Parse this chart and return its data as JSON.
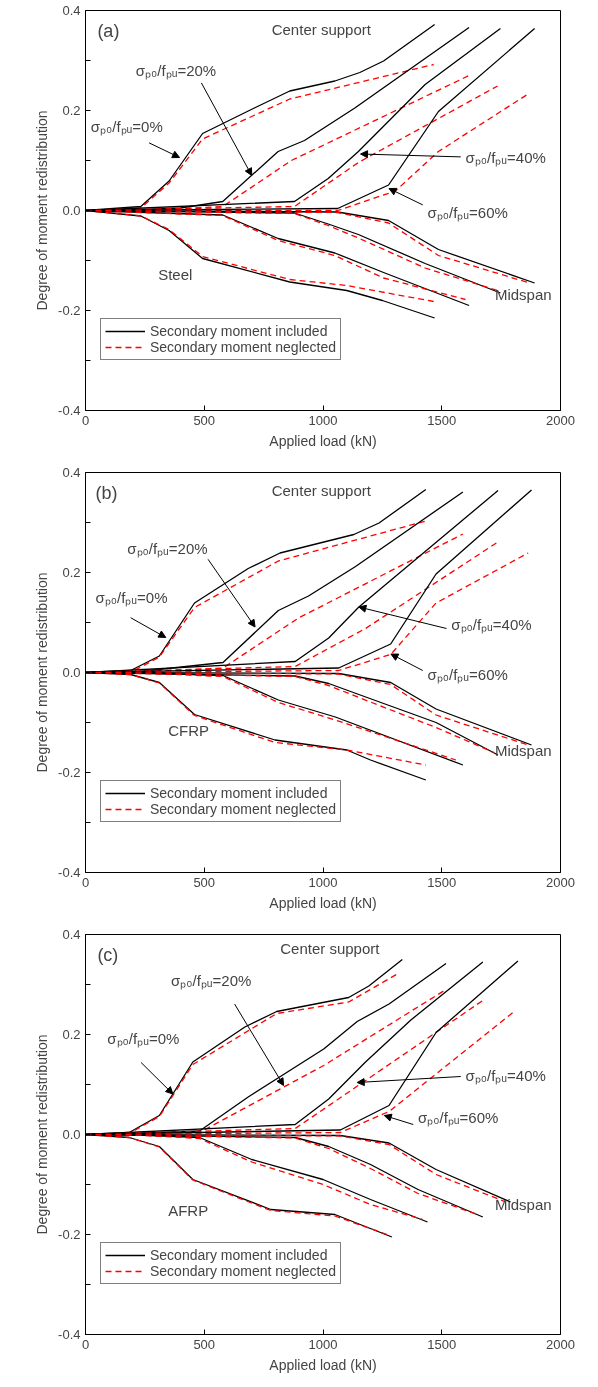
{
  "chart_data": [
    {
      "type": "line",
      "title": "(a)",
      "xlabel": "Applied load (kN)",
      "ylabel": "Degree of moment redistribution",
      "xlim": [
        0,
        2000
      ],
      "ylim": [
        -0.4,
        0.4
      ],
      "xticks": [
        0,
        500,
        1000,
        1500,
        2000
      ],
      "yticks": [
        {
          "value": -0.4,
          "label": "-0.4"
        },
        {
          "value": -0.3,
          "label": null
        },
        {
          "value": -0.2,
          "label": "-0.2"
        },
        {
          "value": -0.1,
          "label": null
        },
        {
          "value": 0,
          "label": "0.0"
        },
        {
          "value": 0.1,
          "label": null
        },
        {
          "value": 0.2,
          "label": "0.2"
        },
        {
          "value": 0.3,
          "label": null
        },
        {
          "value": 0.4,
          "label": "0.4"
        }
      ],
      "grid": false,
      "legend": "bottom left",
      "annotations": [
        {
          "text": "σₚ₀/fₚᵤ=0%",
          "x": 396,
          "y": 0.106
        },
        {
          "text": "σₚ₀/fₚᵤ=20%",
          "x": 700,
          "y": 0.07
        },
        {
          "text": "σₚ₀/fₚᵤ=40%",
          "x": 1158,
          "y": 0.113
        },
        {
          "text": "σₚ₀/fₚᵤ=60%",
          "x": 1278,
          "y": 0.044
        },
        "Center support",
        "Midspan",
        "Steel"
      ],
      "series": [
        {
          "name": "Secondary moment included",
          "color": "#000000",
          "line_style": "solid",
          "x": [
            0,
            233,
            352,
            493,
            711,
            860,
            1050,
            1155,
            1255,
            1470
          ],
          "values": [
            0,
            0.008,
            0.059,
            0.154,
            0.205,
            0.239,
            0.259,
            0.276,
            0.299,
            0.372
          ]
        },
        {
          "name": "Secondary moment neglected",
          "color": "#ff0000",
          "line_style": "dashed",
          "x": [
            0,
            233,
            352,
            493,
            860,
            1466
          ],
          "values": [
            0,
            0.005,
            0.055,
            0.143,
            0.223,
            0.292
          ]
        },
        {
          "color": "#000000",
          "line_style": "solid",
          "x": [
            0,
            233,
            352,
            493,
            860,
            1100,
            1250,
            1470
          ],
          "values": [
            0,
            -0.011,
            -0.04,
            -0.096,
            -0.143,
            -0.16,
            -0.18,
            -0.215
          ]
        },
        {
          "color": "#ff0000",
          "line_style": "dashed",
          "x": [
            0,
            233,
            352,
            493,
            860,
            1100,
            1466
          ],
          "values": [
            0,
            -0.011,
            -0.038,
            -0.092,
            -0.138,
            -0.15,
            -0.182
          ]
        },
        {
          "color": "#000000",
          "line_style": "solid",
          "x": [
            0,
            233,
            400,
            578,
            811,
            922,
            1134,
            1615
          ],
          "values": [
            0,
            0.002,
            0.005,
            0.018,
            0.118,
            0.14,
            0.205,
            0.366
          ]
        },
        {
          "color": "#ff0000",
          "line_style": "dashed",
          "x": [
            0,
            233,
            578,
            867,
            1615
          ],
          "values": [
            0,
            0,
            0.008,
            0.1,
            0.27
          ]
        },
        {
          "color": "#000000",
          "line_style": "solid",
          "x": [
            0,
            578,
            811,
            1050,
            1255,
            1615
          ],
          "values": [
            0,
            -0.009,
            -0.056,
            -0.085,
            -0.124,
            -0.19
          ]
        },
        {
          "color": "#ff0000",
          "line_style": "dashed",
          "x": [
            0,
            578,
            811,
            1050,
            1255,
            1600
          ],
          "values": [
            0,
            -0.01,
            -0.06,
            -0.09,
            -0.135,
            -0.178
          ]
        },
        {
          "color": "#000000",
          "line_style": "solid",
          "x": [
            0,
            880,
            1022,
            1149,
            1430,
            1747
          ],
          "values": [
            0,
            0.018,
            0.064,
            0.118,
            0.252,
            0.364
          ]
        },
        {
          "color": "#ff0000",
          "line_style": "dashed",
          "x": [
            0,
            880,
            1149,
            1735
          ],
          "values": [
            0,
            0.008,
            0.096,
            0.249
          ]
        },
        {
          "color": "#000000",
          "line_style": "solid",
          "x": [
            0,
            880,
            1022,
            1149,
            1430,
            1747
          ],
          "values": [
            0,
            -0.005,
            -0.027,
            -0.048,
            -0.106,
            -0.165
          ]
        },
        {
          "color": "#ff0000",
          "line_style": "dashed",
          "x": [
            0,
            880,
            1022,
            1149,
            1430,
            1735
          ],
          "values": [
            0,
            -0.006,
            -0.03,
            -0.055,
            -0.115,
            -0.16
          ]
        },
        {
          "color": "#000000",
          "line_style": "solid",
          "x": [
            0,
            1062,
            1276,
            1486,
            1891
          ],
          "values": [
            0,
            0.004,
            0.051,
            0.198,
            0.364
          ]
        },
        {
          "color": "#ff0000",
          "line_style": "dashed",
          "x": [
            0,
            1062,
            1305,
            1486,
            1870
          ],
          "values": [
            0,
            0,
            0.039,
            0.118,
            0.235
          ]
        },
        {
          "color": "#000000",
          "line_style": "solid",
          "x": [
            0,
            1062,
            1276,
            1486,
            1891
          ],
          "values": [
            0,
            -0.003,
            -0.02,
            -0.078,
            -0.145
          ]
        },
        {
          "color": "#ff0000",
          "line_style": "dashed",
          "x": [
            0,
            1062,
            1276,
            1486,
            1870
          ],
          "values": [
            0,
            -0.004,
            -0.025,
            -0.09,
            -0.145
          ]
        }
      ]
    },
    {
      "type": "line",
      "title": "(b)",
      "xlabel": "Applied load (kN)",
      "ylabel": "Degree of moment redistribution",
      "xlim": [
        0,
        2000
      ],
      "ylim": [
        -0.4,
        0.4
      ],
      "xticks": [
        0,
        500,
        1000,
        1500,
        2000
      ],
      "yticks": [
        {
          "value": -0.4,
          "label": "-0.4"
        },
        {
          "value": -0.3,
          "label": null
        },
        {
          "value": -0.2,
          "label": "-0.2"
        },
        {
          "value": -0.1,
          "label": null
        },
        {
          "value": 0,
          "label": "0.0"
        },
        {
          "value": 0.1,
          "label": null
        },
        {
          "value": 0.2,
          "label": "0.2"
        },
        {
          "value": 0.3,
          "label": null
        },
        {
          "value": 0.4,
          "label": "0.4"
        }
      ],
      "grid": false,
      "legend": "bottom left",
      "annotations": [
        {
          "text": "σₚ₀/fₚᵤ=0%",
          "x": 338,
          "y": 0.07
        },
        {
          "text": "σₚ₀/fₚᵤ=20%",
          "x": 714,
          "y": 0.091
        },
        {
          "text": "σₚ₀/fₚᵤ=40%",
          "x": 1151,
          "y": 0.131
        },
        {
          "text": "σₚ₀/fₚᵤ=60%",
          "x": 1286,
          "y": 0.037
        },
        "Center support",
        "Midspan",
        "CFRP"
      ],
      "series": [
        {
          "name": "Secondary moment included",
          "color": "#000000",
          "line_style": "solid",
          "x": [
            0,
            190,
            311,
            459,
            685,
            819,
            1130,
            1236,
            1433
          ],
          "values": [
            0,
            0.004,
            0.033,
            0.139,
            0.208,
            0.239,
            0.276,
            0.299,
            0.366
          ]
        },
        {
          "name": "Secondary moment neglected",
          "color": "#ff0000",
          "line_style": "dashed",
          "x": [
            0,
            190,
            311,
            459,
            812,
            1433
          ],
          "values": [
            0,
            0,
            0.031,
            0.13,
            0.223,
            0.303
          ]
        },
        {
          "color": "#000000",
          "line_style": "solid",
          "x": [
            0,
            190,
            311,
            459,
            798,
            1100,
            1200,
            1433
          ],
          "values": [
            0,
            -0.004,
            -0.02,
            -0.084,
            -0.135,
            -0.155,
            -0.175,
            -0.215
          ]
        },
        {
          "color": "#ff0000",
          "line_style": "dashed",
          "x": [
            0,
            190,
            311,
            459,
            798,
            1100,
            1433
          ],
          "values": [
            0,
            -0.004,
            -0.021,
            -0.086,
            -0.14,
            -0.155,
            -0.185
          ]
        },
        {
          "color": "#000000",
          "line_style": "solid",
          "x": [
            0,
            190,
            579,
            812,
            939,
            1137,
            1589
          ],
          "values": [
            0,
            0,
            0.02,
            0.124,
            0.153,
            0.212,
            0.361
          ]
        },
        {
          "color": "#ff0000",
          "line_style": "dashed",
          "x": [
            0,
            190,
            579,
            897,
            1589
          ],
          "values": [
            0,
            0,
            0.009,
            0.109,
            0.277
          ]
        },
        {
          "color": "#000000",
          "line_style": "solid",
          "x": [
            0,
            190,
            579,
            812,
            1052,
            1589
          ],
          "values": [
            0,
            0,
            -0.006,
            -0.055,
            -0.089,
            -0.185
          ]
        },
        {
          "color": "#ff0000",
          "line_style": "dashed",
          "x": [
            0,
            190,
            579,
            812,
            1052,
            1560
          ],
          "values": [
            0,
            0,
            -0.008,
            -0.06,
            -0.095,
            -0.175
          ]
        },
        {
          "color": "#000000",
          "line_style": "solid",
          "x": [
            0,
            883,
            1024,
            1151,
            1737
          ],
          "values": [
            0,
            0.022,
            0.069,
            0.131,
            0.364
          ]
        },
        {
          "color": "#ff0000",
          "line_style": "dashed",
          "x": [
            0,
            883,
            1179,
            1730
          ],
          "values": [
            0,
            0.012,
            0.088,
            0.259
          ]
        },
        {
          "color": "#000000",
          "line_style": "solid",
          "x": [
            0,
            883,
            1024,
            1151,
            1476,
            1737
          ],
          "values": [
            0,
            -0.007,
            -0.022,
            -0.044,
            -0.1,
            -0.165
          ]
        },
        {
          "color": "#ff0000",
          "line_style": "dashed",
          "x": [
            0,
            883,
            1024,
            1151,
            1476,
            1720
          ],
          "values": [
            0,
            -0.008,
            -0.026,
            -0.05,
            -0.11,
            -0.16
          ]
        },
        {
          "color": "#000000",
          "line_style": "solid",
          "x": [
            0,
            1066,
            1285,
            1476,
            1878
          ],
          "values": [
            0,
            0.009,
            0.057,
            0.197,
            0.365
          ]
        },
        {
          "color": "#ff0000",
          "line_style": "dashed",
          "x": [
            0,
            1066,
            1285,
            1476,
            1864
          ],
          "values": [
            0,
            0.004,
            0.036,
            0.139,
            0.239
          ]
        },
        {
          "color": "#000000",
          "line_style": "solid",
          "x": [
            0,
            1066,
            1285,
            1476,
            1878
          ],
          "values": [
            0,
            -0.002,
            -0.02,
            -0.073,
            -0.145
          ]
        },
        {
          "color": "#ff0000",
          "line_style": "dashed",
          "x": [
            0,
            1066,
            1285,
            1476,
            1864
          ],
          "values": [
            0,
            -0.003,
            -0.024,
            -0.085,
            -0.145
          ]
        }
      ]
    },
    {
      "type": "line",
      "title": "(c)",
      "xlabel": "Applied load (kN)",
      "ylabel": "Degree of moment redistribution",
      "xlim": [
        0,
        2000
      ],
      "ylim": [
        -0.4,
        0.4
      ],
      "xticks": [
        0,
        500,
        1000,
        1500,
        2000
      ],
      "yticks": [
        {
          "value": -0.4,
          "label": "-0.4"
        },
        {
          "value": -0.3,
          "label": null
        },
        {
          "value": -0.2,
          "label": "-0.2"
        },
        {
          "value": -0.1,
          "label": null
        },
        {
          "value": 0,
          "label": "0.0"
        },
        {
          "value": 0.1,
          "label": null
        },
        {
          "value": 0.2,
          "label": "0.2"
        },
        {
          "value": 0.3,
          "label": null
        },
        {
          "value": 0.4,
          "label": "0.4"
        }
      ],
      "grid": false,
      "legend": "bottom left",
      "annotations": [
        {
          "text": "σₚ₀/fₚᵤ=0%",
          "x": 368,
          "y": 0.081
        },
        {
          "text": "σₚ₀/fₚᵤ=20%",
          "x": 834,
          "y": 0.098
        },
        {
          "text": "σₚ₀/fₚᵤ=40%",
          "x": 1144,
          "y": 0.104
        },
        {
          "text": "σₚ₀/fₚᵤ=60%",
          "x": 1258,
          "y": 0.038
        },
        "Center support",
        "Midspan",
        "AFRP"
      ],
      "series": [
        {
          "name": "Secondary moment included",
          "color": "#000000",
          "line_style": "solid",
          "x": [
            0,
            184,
            311,
            452,
            671,
            805,
            1108,
            1193,
            1334
          ],
          "values": [
            0,
            0.004,
            0.038,
            0.145,
            0.215,
            0.246,
            0.274,
            0.297,
            0.35
          ]
        },
        {
          "name": "Secondary moment neglected",
          "color": "#ff0000",
          "line_style": "dashed",
          "x": [
            0,
            184,
            311,
            452,
            805,
            1108,
            1313
          ],
          "values": [
            0,
            0.002,
            0.036,
            0.14,
            0.242,
            0.265,
            0.321
          ]
        },
        {
          "color": "#000000",
          "line_style": "solid",
          "x": [
            0,
            184,
            311,
            452,
            780,
            1050,
            1290
          ],
          "values": [
            0,
            -0.006,
            -0.024,
            -0.09,
            -0.15,
            -0.16,
            -0.205
          ]
        },
        {
          "color": "#ff0000",
          "line_style": "dashed",
          "x": [
            0,
            184,
            311,
            452,
            780,
            1050,
            1270
          ],
          "values": [
            0,
            -0.006,
            -0.025,
            -0.091,
            -0.152,
            -0.163,
            -0.2
          ]
        },
        {
          "color": "#000000",
          "line_style": "solid",
          "x": [
            0,
            184,
            480,
            685,
            1003,
            1144,
            1278,
            1518
          ],
          "values": [
            0,
            0.002,
            0.007,
            0.075,
            0.171,
            0.226,
            0.261,
            0.342
          ]
        },
        {
          "color": "#ff0000",
          "line_style": "dashed",
          "x": [
            0,
            184,
            480,
            1003,
            1518
          ],
          "values": [
            0,
            0,
            0.004,
            0.138,
            0.29
          ]
        },
        {
          "color": "#000000",
          "line_style": "solid",
          "x": [
            0,
            184,
            480,
            700,
            1000,
            1200,
            1440
          ],
          "values": [
            0,
            0,
            -0.006,
            -0.05,
            -0.09,
            -0.13,
            -0.175
          ]
        },
        {
          "color": "#ff0000",
          "line_style": "dashed",
          "x": [
            0,
            184,
            480,
            700,
            1000,
            1200,
            1420
          ],
          "values": [
            0,
            0,
            -0.008,
            -0.055,
            -0.1,
            -0.14,
            -0.17
          ]
        },
        {
          "color": "#000000",
          "line_style": "solid",
          "x": [
            0,
            883,
            1024,
            1179,
            1370,
            1673
          ],
          "values": [
            0,
            0.02,
            0.071,
            0.145,
            0.229,
            0.345
          ]
        },
        {
          "color": "#ff0000",
          "line_style": "dashed",
          "x": [
            0,
            883,
            1673
          ],
          "values": [
            0,
            0.012,
            0.268
          ]
        },
        {
          "color": "#000000",
          "line_style": "solid",
          "x": [
            0,
            883,
            1024,
            1200,
            1400,
            1673
          ],
          "values": [
            0,
            -0.006,
            -0.024,
            -0.06,
            -0.11,
            -0.165
          ]
        },
        {
          "color": "#ff0000",
          "line_style": "dashed",
          "x": [
            0,
            883,
            1024,
            1200,
            1400,
            1650
          ],
          "values": [
            0,
            -0.007,
            -0.028,
            -0.068,
            -0.118,
            -0.16
          ]
        },
        {
          "color": "#000000",
          "line_style": "solid",
          "x": [
            0,
            1073,
            1278,
            1476,
            1821
          ],
          "values": [
            0,
            0.009,
            0.058,
            0.204,
            0.347
          ]
        },
        {
          "color": "#ff0000",
          "line_style": "dashed",
          "x": [
            0,
            1073,
            1278,
            1800
          ],
          "values": [
            0,
            0.004,
            0.046,
            0.244
          ]
        },
        {
          "color": "#000000",
          "line_style": "solid",
          "x": [
            0,
            1073,
            1278,
            1476,
            1790
          ],
          "values": [
            0,
            -0.002,
            -0.017,
            -0.07,
            -0.135
          ]
        },
        {
          "color": "#ff0000",
          "line_style": "dashed",
          "x": [
            0,
            1073,
            1278,
            1476,
            1770
          ],
          "values": [
            0,
            -0.003,
            -0.02,
            -0.08,
            -0.135
          ]
        }
      ]
    }
  ]
}
